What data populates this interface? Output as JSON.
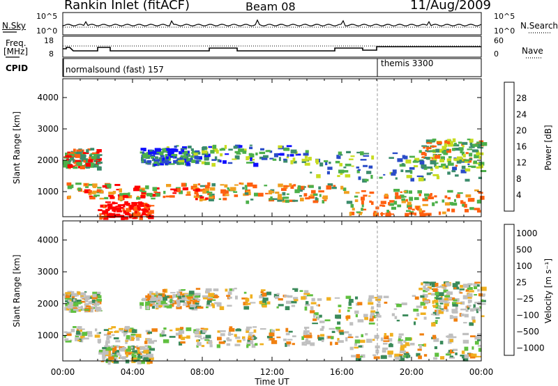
{
  "header": {
    "station": "Rankin Inlet (fitACF)",
    "beam": "Beam 08",
    "date": "11/Aug/2009"
  },
  "aux_panels": {
    "nsky_label": "N.Sky",
    "nsky_ticks": [
      "10^5",
      "10^0"
    ],
    "nsearch_label": "N.Search",
    "nsearch_ticks": [
      "10^5",
      "10^0"
    ],
    "freq_label_1": "Freq.",
    "freq_label_2": "[MHz]",
    "freq_ticks": [
      "18",
      "8"
    ],
    "nave_label": "Nave",
    "nave_ticks": [
      "60",
      "0"
    ],
    "cpid_label": "CPID",
    "cpid_modes": [
      {
        "name": "normalsound (fast) 157",
        "start": "00:00"
      },
      {
        "name": "themis 3300",
        "start": "18:00"
      }
    ]
  },
  "chart_data": [
    {
      "type": "heatmap",
      "title": "",
      "xlabel": "",
      "ylabel": "Slant Range [km]",
      "xlim": [
        "00:00",
        "24:00"
      ],
      "ylim": [
        200,
        4600
      ],
      "y_ticks": [
        1000,
        2000,
        3000,
        4000
      ],
      "colorbar_label": "Power [dB]",
      "colorbar_ticks": [
        4,
        8,
        12,
        16,
        20,
        24,
        28
      ],
      "colorbar_colors": [
        "#1010ff",
        "#2a4cc8",
        "#3b8c6c",
        "#4cb04a",
        "#c8dc20",
        "#f0a020",
        "#ff6010",
        "#ff0000"
      ]
    },
    {
      "type": "heatmap",
      "title": "",
      "xlabel": "Time UT",
      "ylabel": "Slant Range [km]",
      "xlim": [
        "00:00",
        "24:00"
      ],
      "ylim": [
        200,
        4600
      ],
      "x_ticks": [
        "00:00",
        "04:00",
        "08:00",
        "12:00",
        "16:00",
        "20:00",
        "00:00"
      ],
      "y_ticks": [
        1000,
        2000,
        3000,
        4000
      ],
      "colorbar_label": "Velocity [m s⁻¹]",
      "colorbar_ticks": [
        "1000",
        "500",
        "100",
        "25",
        "−25",
        "−100",
        "−500",
        "−1000"
      ],
      "colorbar_colors": [
        "#2040c0",
        "#3060a0",
        "#3a8a5a",
        "#60c040",
        "#c0c0c0",
        "#f0b020",
        "#f08010",
        "#ff1010"
      ]
    }
  ]
}
